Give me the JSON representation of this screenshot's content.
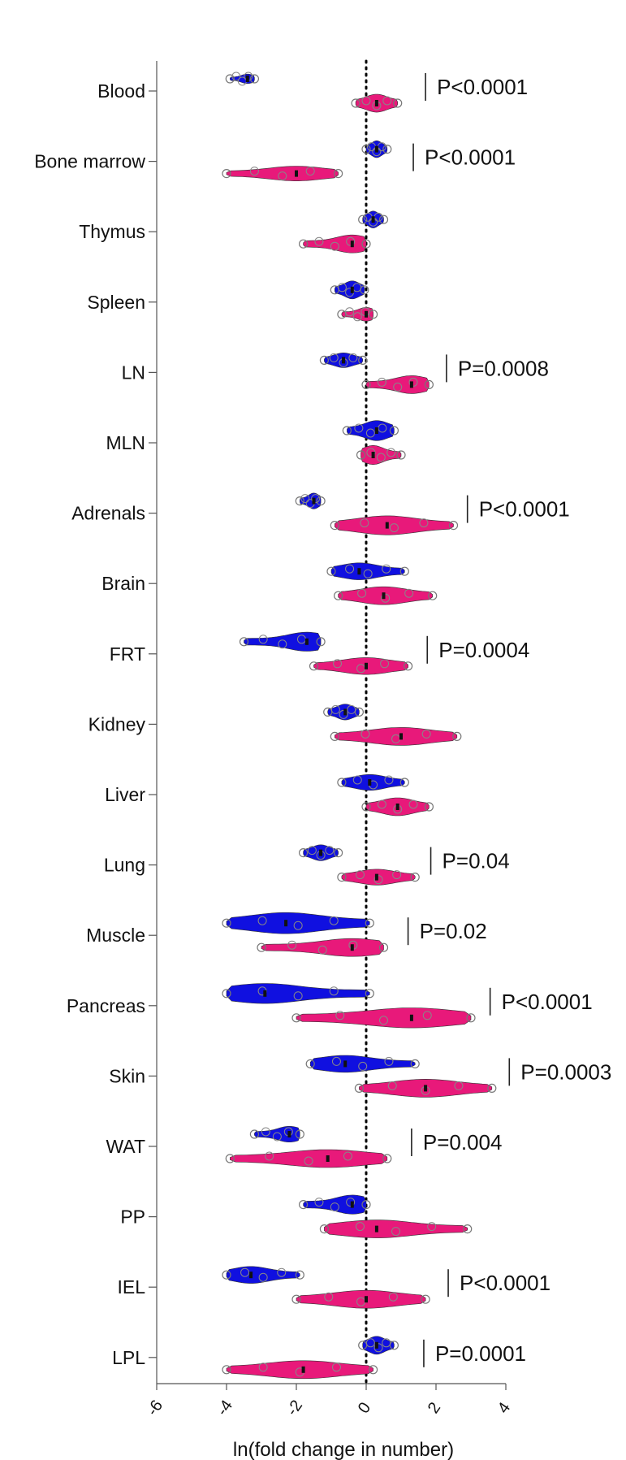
{
  "chart_data": {
    "type": "violin",
    "xlabel": "ln(fold change in number)",
    "xlim": [
      -6,
      4
    ],
    "xticks": [
      "-6",
      "-4",
      "-2",
      "0",
      "2",
      "4"
    ],
    "reference_line": 0,
    "colors": {
      "series_a": "#1010e0",
      "series_b": "#e8197a"
    },
    "categories": [
      "Blood",
      "Bone marrow",
      "Thymus",
      "Spleen",
      "LN",
      "MLN",
      "Adrenals",
      "Brain",
      "FRT",
      "Kidney",
      "Liver",
      "Lung",
      "Muscle",
      "Pancreas",
      "Skin",
      "WAT",
      "PP",
      "IEL",
      "LPL"
    ],
    "series": [
      {
        "color": "#1010e0",
        "violins": [
          {
            "category": "Blood",
            "min": -3.9,
            "max": -3.2,
            "median": -3.4,
            "w": 0.45
          },
          {
            "category": "Bone marrow",
            "min": 0.0,
            "max": 0.6,
            "median": 0.3,
            "w": 0.8
          },
          {
            "category": "Thymus",
            "min": -0.1,
            "max": 0.5,
            "median": 0.2,
            "w": 0.8
          },
          {
            "category": "Spleen",
            "min": -0.9,
            "max": -0.05,
            "median": -0.4,
            "w": 0.85
          },
          {
            "category": "LN",
            "min": -1.2,
            "max": -0.1,
            "median": -0.65,
            "w": 0.7
          },
          {
            "category": "MLN",
            "min": -0.55,
            "max": 0.8,
            "median": 0.3,
            "w": 0.95
          },
          {
            "category": "Adrenals",
            "min": -1.9,
            "max": -1.3,
            "median": -1.5,
            "w": 0.75
          },
          {
            "category": "Brain",
            "min": -1.0,
            "max": 1.1,
            "median": -0.2,
            "w": 0.8
          },
          {
            "category": "FRT",
            "min": -3.5,
            "max": -1.3,
            "median": -1.7,
            "w": 0.9
          },
          {
            "category": "Kidney",
            "min": -1.1,
            "max": -0.2,
            "median": -0.6,
            "w": 0.75
          },
          {
            "category": "Liver",
            "min": -0.7,
            "max": 1.1,
            "median": 0.1,
            "w": 0.75
          },
          {
            "category": "Lung",
            "min": -1.8,
            "max": -0.8,
            "median": -1.3,
            "w": 0.75
          },
          {
            "category": "Muscle",
            "min": -4.0,
            "max": 0.1,
            "median": -2.3,
            "w": 1.0
          },
          {
            "category": "Pancreas",
            "min": -4.0,
            "max": 0.1,
            "median": -2.9,
            "w": 0.95
          },
          {
            "category": "Skin",
            "min": -1.6,
            "max": 1.4,
            "median": -0.6,
            "w": 0.8
          },
          {
            "category": "WAT",
            "min": -3.2,
            "max": -1.9,
            "median": -2.2,
            "w": 0.75
          },
          {
            "category": "PP",
            "min": -1.8,
            "max": 0.0,
            "median": -0.4,
            "w": 0.9
          },
          {
            "category": "IEL",
            "min": -4.0,
            "max": -1.9,
            "median": -3.3,
            "w": 0.8
          },
          {
            "category": "LPL",
            "min": -0.1,
            "max": 0.8,
            "median": 0.3,
            "w": 0.85
          }
        ]
      },
      {
        "color": "#e8197a",
        "violins": [
          {
            "category": "Blood",
            "min": -0.3,
            "max": 0.9,
            "median": 0.3,
            "w": 0.85
          },
          {
            "category": "Bone marrow",
            "min": -4.0,
            "max": -0.8,
            "median": -2.0,
            "w": 0.7
          },
          {
            "category": "Thymus",
            "min": -1.8,
            "max": 0.0,
            "median": -0.4,
            "w": 0.85
          },
          {
            "category": "Spleen",
            "min": -0.7,
            "max": 0.2,
            "median": 0.0,
            "w": 0.65
          },
          {
            "category": "LN",
            "min": 0.0,
            "max": 1.8,
            "median": 1.3,
            "w": 0.85
          },
          {
            "category": "MLN",
            "min": -0.15,
            "max": 1.0,
            "median": 0.2,
            "w": 0.9
          },
          {
            "category": "Adrenals",
            "min": -0.9,
            "max": 2.5,
            "median": 0.6,
            "w": 0.9
          },
          {
            "category": "Brain",
            "min": -0.8,
            "max": 1.9,
            "median": 0.5,
            "w": 0.85
          },
          {
            "category": "FRT",
            "min": -1.5,
            "max": 1.2,
            "median": 0.0,
            "w": 0.8
          },
          {
            "category": "Kidney",
            "min": -0.9,
            "max": 2.6,
            "median": 1.0,
            "w": 0.85
          },
          {
            "category": "Liver",
            "min": 0.0,
            "max": 1.8,
            "median": 0.9,
            "w": 0.85
          },
          {
            "category": "Lung",
            "min": -0.7,
            "max": 1.4,
            "median": 0.3,
            "w": 0.75
          },
          {
            "category": "Muscle",
            "min": -3.0,
            "max": 0.5,
            "median": -0.4,
            "w": 0.85
          },
          {
            "category": "Pancreas",
            "min": -2.0,
            "max": 3.0,
            "median": 1.3,
            "w": 0.95
          },
          {
            "category": "Skin",
            "min": -0.2,
            "max": 3.6,
            "median": 1.7,
            "w": 0.85
          },
          {
            "category": "WAT",
            "min": -3.9,
            "max": 0.6,
            "median": -1.1,
            "w": 0.85
          },
          {
            "category": "PP",
            "min": -1.2,
            "max": 2.9,
            "median": 0.3,
            "w": 0.85
          },
          {
            "category": "IEL",
            "min": -2.0,
            "max": 1.7,
            "median": 0.0,
            "w": 0.85
          },
          {
            "category": "LPL",
            "min": -4.0,
            "max": 0.2,
            "median": -1.8,
            "w": 0.85
          }
        ]
      }
    ],
    "annotations": [
      {
        "category": "Blood",
        "text": "P<0.0001",
        "at_x": 1.7
      },
      {
        "category": "Bone marrow",
        "text": "P<0.0001",
        "at_x": 1.35
      },
      {
        "category": "LN",
        "text": "P=0.0008",
        "at_x": 2.3
      },
      {
        "category": "Adrenals",
        "text": "P<0.0001",
        "at_x": 2.9
      },
      {
        "category": "FRT",
        "text": "P=0.0004",
        "at_x": 1.75
      },
      {
        "category": "Lung",
        "text": "P=0.04",
        "at_x": 1.85
      },
      {
        "category": "Muscle",
        "text": "P=0.02",
        "at_x": 1.2
      },
      {
        "category": "Pancreas",
        "text": "P<0.0001",
        "at_x": 3.55
      },
      {
        "category": "Skin",
        "text": "P=0.0003",
        "at_x": 4.1
      },
      {
        "category": "WAT",
        "text": "P=0.004",
        "at_x": 1.3
      },
      {
        "category": "IEL",
        "text": "P<0.0001",
        "at_x": 2.35
      },
      {
        "category": "LPL",
        "text": "P=0.0001",
        "at_x": 1.65
      }
    ]
  }
}
